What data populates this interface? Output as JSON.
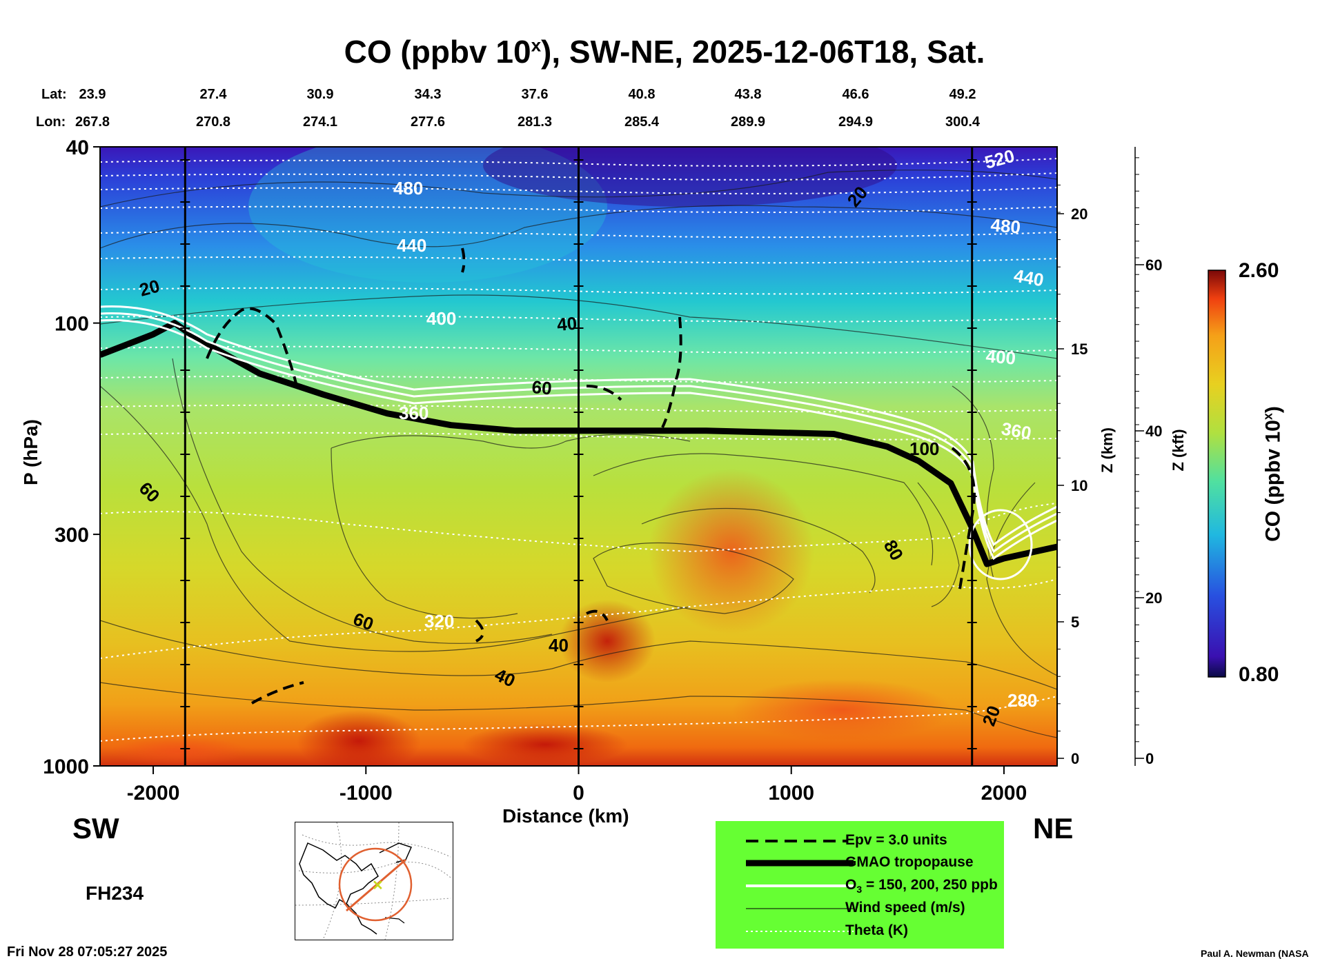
{
  "title": {
    "main": "CO (ppbv 10",
    "sup": "x",
    "rest": "), SW-NE, 2025-12-06T18, Sat."
  },
  "lat_label": "Lat:",
  "lon_label": "Lon:",
  "lat_values": [
    "23.9",
    "27.4",
    "30.9",
    "34.3",
    "37.6",
    "40.8",
    "43.8",
    "46.6",
    "49.2"
  ],
  "lon_values": [
    "267.8",
    "270.8",
    "274.1",
    "277.6",
    "281.3",
    "285.4",
    "289.9",
    "294.9",
    "300.4"
  ],
  "chart_data": {
    "type": "heatmap",
    "title": "CO (ppbv 10^x), SW-NE, 2025-12-06T18, Sat.",
    "xlabel": "Distance (km)",
    "ylabel": "P (hPa)",
    "xlim": [
      -2250,
      2250
    ],
    "x_ticks": [
      "-2000",
      "-1000",
      "0",
      "1000",
      "2000"
    ],
    "y_ticks": [
      "40",
      "100",
      "300",
      "1000"
    ],
    "y_range_hpa": [
      1000,
      40
    ],
    "z_km_ticks": [
      "0",
      "5",
      "10",
      "15",
      "20"
    ],
    "z_kft_ticks": [
      "0",
      "20",
      "40",
      "60"
    ],
    "z_km_label": "Z (km)",
    "z_kft_label": "Z (kft)",
    "colorbar": {
      "label_main": "CO (ppbv 10",
      "label_sup": "x",
      "min": "0.80",
      "max": "2.60"
    },
    "vertical_markers_km": [
      -1850,
      0,
      1850
    ],
    "wind_speed_labels": [
      "20",
      "40",
      "60",
      "100",
      "80",
      "60",
      "40",
      "60",
      "40",
      "20",
      "20"
    ],
    "theta_labels": [
      "520",
      "480",
      "480",
      "440",
      "440",
      "400",
      "400",
      "360",
      "360",
      "320",
      "280"
    ],
    "series": [
      {
        "name": "GMAO tropopause (hPa)",
        "x": [
          -2250,
          -2000,
          -1900,
          -1800,
          -1500,
          -1200,
          -900,
          -600,
          -300,
          0,
          600,
          1200,
          1450,
          1600,
          1750,
          1850,
          1920,
          2000,
          2250
        ],
        "values": [
          118,
          106,
          100,
          108,
          130,
          145,
          160,
          170,
          175,
          175,
          175,
          178,
          190,
          205,
          230,
          290,
          350,
          340,
          320
        ]
      }
    ]
  },
  "direction_left": "SW",
  "direction_right": "NE",
  "forecast_hour": "FH234",
  "timestamp": "Fri Nov 28 07:05:27 2025",
  "credit": "Paul A. Newman (NASA",
  "legend": {
    "items": [
      {
        "label": "Epv = 3.0 units"
      },
      {
        "label": "GMAO tropopause"
      },
      {
        "label_main": "O",
        "label_sub": "3",
        "label_rest": " = 150, 200, 250 ppb"
      },
      {
        "label": "Wind speed (m/s)"
      },
      {
        "label": "Theta (K)"
      }
    ]
  },
  "colors": {
    "legend_bg": "#66ff33",
    "inset_route": "#e06030",
    "inset_marker": "#c8d820"
  }
}
